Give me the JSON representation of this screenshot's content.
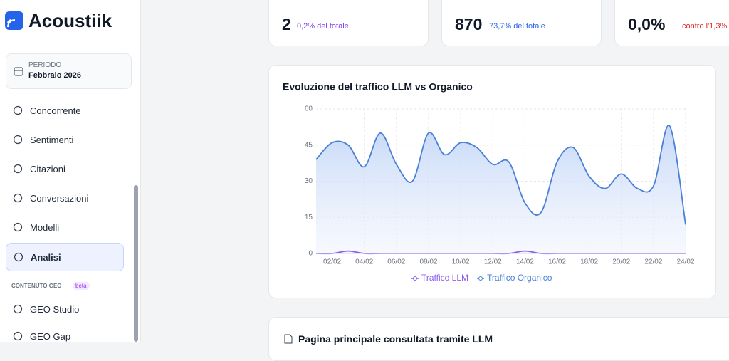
{
  "sidebar": {
    "logo": "Acoustiik",
    "period_label": "PERIODO",
    "period_value": "Febbraio 2026",
    "nav": [
      "Concorrente",
      "Sentimenti",
      "Citazioni",
      "Conversazioni",
      "Modelli",
      "Analisi"
    ],
    "section": "CONTENUTO GEO",
    "section_badge": "beta",
    "section_nav": [
      "GEO Studio",
      "GEO Gap"
    ]
  },
  "stats": [
    {
      "value": "2",
      "note": "0,2% del totale"
    },
    {
      "value": "870",
      "note": "73,7% del totale"
    },
    {
      "value": "0,0%",
      "note": "contro l'1,3%"
    }
  ],
  "chart_data": {
    "type": "line",
    "title": "Evoluzione del traffico LLM vs Organico",
    "categories": [
      null,
      "02/02",
      null,
      "04/02",
      null,
      "06/02",
      null,
      "08/02",
      null,
      "10/02",
      null,
      "12/02",
      null,
      "14/02",
      null,
      "16/02",
      null,
      "18/02",
      null,
      "20/02",
      null,
      "22/02",
      null,
      "24/02"
    ],
    "series": [
      {
        "name": "Traffico LLM",
        "color": "#8b5cf6",
        "values": [
          0,
          0,
          1,
          0,
          0,
          0,
          0,
          0,
          0,
          0,
          0,
          0,
          0,
          1,
          0,
          0,
          0,
          0,
          0,
          0,
          0,
          0,
          0,
          0
        ]
      },
      {
        "name": "Traffico Organico",
        "color": "#4a80d6",
        "values": [
          39,
          46,
          45,
          36,
          50,
          37,
          30,
          50,
          41,
          46,
          44,
          37,
          38,
          21,
          17,
          38,
          44,
          32,
          27,
          33,
          27,
          28,
          53,
          12
        ]
      }
    ],
    "ylim": [
      0,
      60
    ],
    "yticks": [
      0,
      15,
      30,
      45,
      60
    ],
    "grid": true,
    "legend": "bottom"
  },
  "bottom_card": {
    "title": "Pagina principale consultata tramite LLM"
  }
}
